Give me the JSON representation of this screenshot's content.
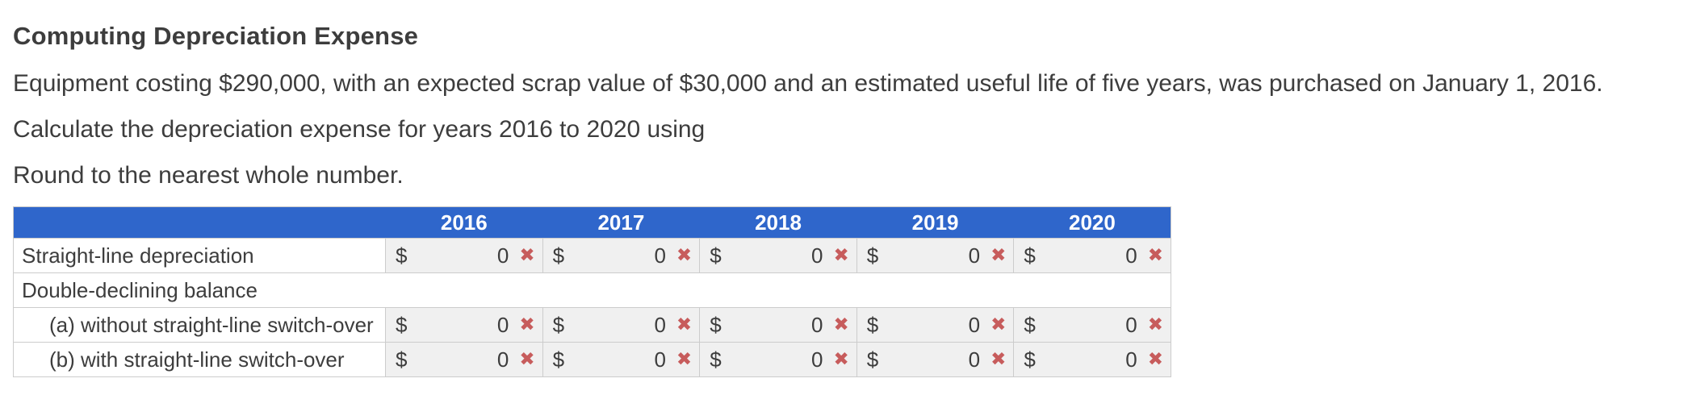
{
  "title": "Computing Depreciation Expense",
  "paragraphs": [
    "Equipment costing $290,000, with an expected scrap value of $30,000 and an estimated useful life of five years, was purchased on January 1, 2016.",
    "Calculate the depreciation expense for years 2016 to 2020 using",
    "Round to the nearest whole number."
  ],
  "table": {
    "currency": "$",
    "years": [
      "2016",
      "2017",
      "2018",
      "2019",
      "2020"
    ],
    "rows": [
      {
        "label": "Straight-line depreciation",
        "values": [
          "0",
          "0",
          "0",
          "0",
          "0"
        ]
      },
      {
        "label": "Double-declining balance"
      },
      {
        "label": "(a) without straight-line switch-over",
        "values": [
          "0",
          "0",
          "0",
          "0",
          "0"
        ]
      },
      {
        "label": "(b) with straight-line switch-over",
        "values": [
          "0",
          "0",
          "0",
          "0",
          "0"
        ]
      }
    ]
  },
  "icons": {
    "incorrect_mark": "✖"
  },
  "colors": {
    "header_bg": "#2f66cb",
    "header_text": "#ffffff",
    "cell_bg": "#f0f0f0",
    "incorrect_mark": "#c75c5c",
    "body_text": "#3d3d3d",
    "border": "#cccccc"
  }
}
